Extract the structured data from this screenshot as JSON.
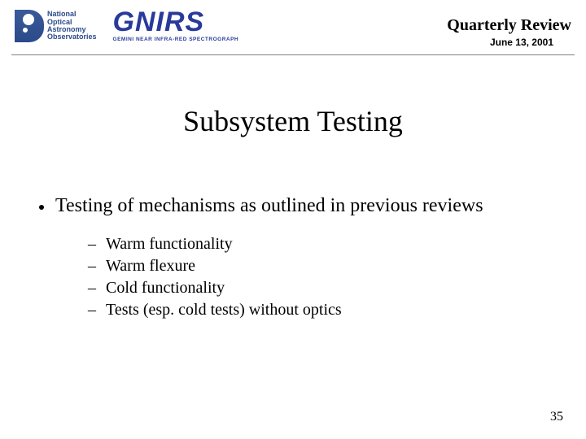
{
  "header": {
    "noao_text_lines": [
      "National",
      "Optical",
      "Astronomy",
      "Observatories"
    ],
    "gnirs_word": "GNIRS",
    "gnirs_sub": "GEMINI NEAR INFRA-RED SPECTROGRAPH",
    "review_title": "Quarterly Review",
    "review_date": "June 13, 2001"
  },
  "slide": {
    "title": "Subsystem Testing",
    "bullet": "Testing of mechanisms as outlined in previous reviews",
    "subitems": [
      "Warm functionality",
      "Warm flexure",
      "Cold functionality",
      "Tests (esp. cold tests) without optics"
    ],
    "page_number": "35"
  }
}
